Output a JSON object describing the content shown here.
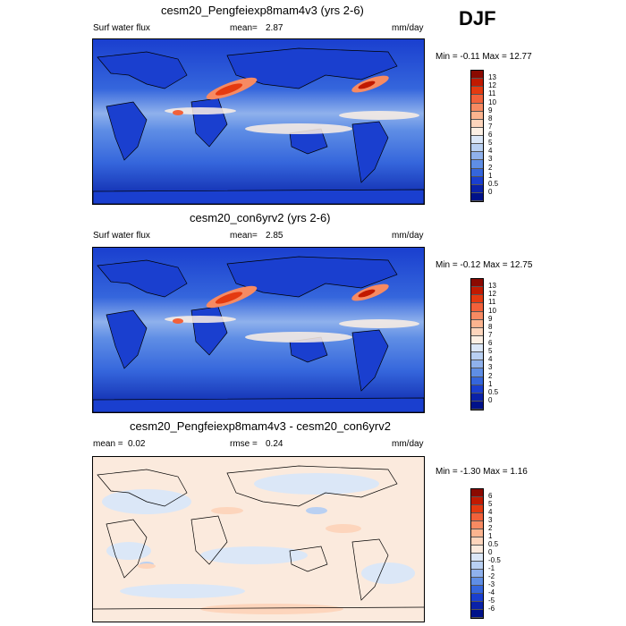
{
  "season": "DJF",
  "panels": [
    {
      "title": "cesm20_Pengfeiexp8mam4v3 (yrs 2-6)",
      "left_label": "Surf water flux",
      "stat_label": "mean=",
      "stat_value": "2.87",
      "stat2_label": "",
      "stat2_value": "",
      "units": "mm/day",
      "minmax": "Min =  -0.11 Max =  12.77",
      "colorbar": {
        "labels": [
          "13",
          "12",
          "11",
          "10",
          "9",
          "8",
          "7",
          "6",
          "5",
          "4",
          "3",
          "2",
          "1",
          "0.5",
          "0"
        ],
        "colors": [
          "#8b0a00",
          "#c11a00",
          "#e43a10",
          "#f2613a",
          "#f78a62",
          "#fbb48f",
          "#fdd5bc",
          "#fdf0e4",
          "#dbe7f7",
          "#b9d0f2",
          "#8fb1ec",
          "#5f8ee5",
          "#3566dc",
          "#1a3fcf",
          "#0a22a8",
          "#00128a"
        ]
      },
      "map_type": "flux"
    },
    {
      "title": "cesm20_con6yrv2 (yrs 2-6)",
      "left_label": "Surf water flux",
      "stat_label": "mean=",
      "stat_value": "2.85",
      "stat2_label": "",
      "stat2_value": "",
      "units": "mm/day",
      "minmax": "Min =  -0.12 Max =  12.75",
      "colorbar": {
        "labels": [
          "13",
          "12",
          "11",
          "10",
          "9",
          "8",
          "7",
          "6",
          "5",
          "4",
          "3",
          "2",
          "1",
          "0.5",
          "0"
        ],
        "colors": [
          "#8b0a00",
          "#c11a00",
          "#e43a10",
          "#f2613a",
          "#f78a62",
          "#fbb48f",
          "#fdd5bc",
          "#fdf0e4",
          "#dbe7f7",
          "#b9d0f2",
          "#8fb1ec",
          "#5f8ee5",
          "#3566dc",
          "#1a3fcf",
          "#0a22a8",
          "#00128a"
        ]
      },
      "map_type": "flux"
    },
    {
      "title": "cesm20_Pengfeiexp8mam4v3 - cesm20_con6yrv2",
      "left_label": "",
      "stat_label": "mean =",
      "stat_value": "0.02",
      "stat2_label": "rmse =",
      "stat2_value": "0.24",
      "units": "mm/day",
      "minmax": "Min =  -1.30 Max =  1.16",
      "colorbar": {
        "labels": [
          "6",
          "5",
          "4",
          "3",
          "2",
          "1",
          "0.5",
          "0",
          "-0.5",
          "-1",
          "-2",
          "-3",
          "-4",
          "-5",
          "-6"
        ],
        "colors": [
          "#8b0a00",
          "#c11a00",
          "#e43a10",
          "#f2613a",
          "#f78a62",
          "#fbb48f",
          "#fdd5bc",
          "#fbeadd",
          "#dbe7f7",
          "#b9d0f2",
          "#8fb1ec",
          "#5f8ee5",
          "#3566dc",
          "#1a3fcf",
          "#0a22a8",
          "#00128a"
        ]
      },
      "map_type": "diff"
    }
  ]
}
